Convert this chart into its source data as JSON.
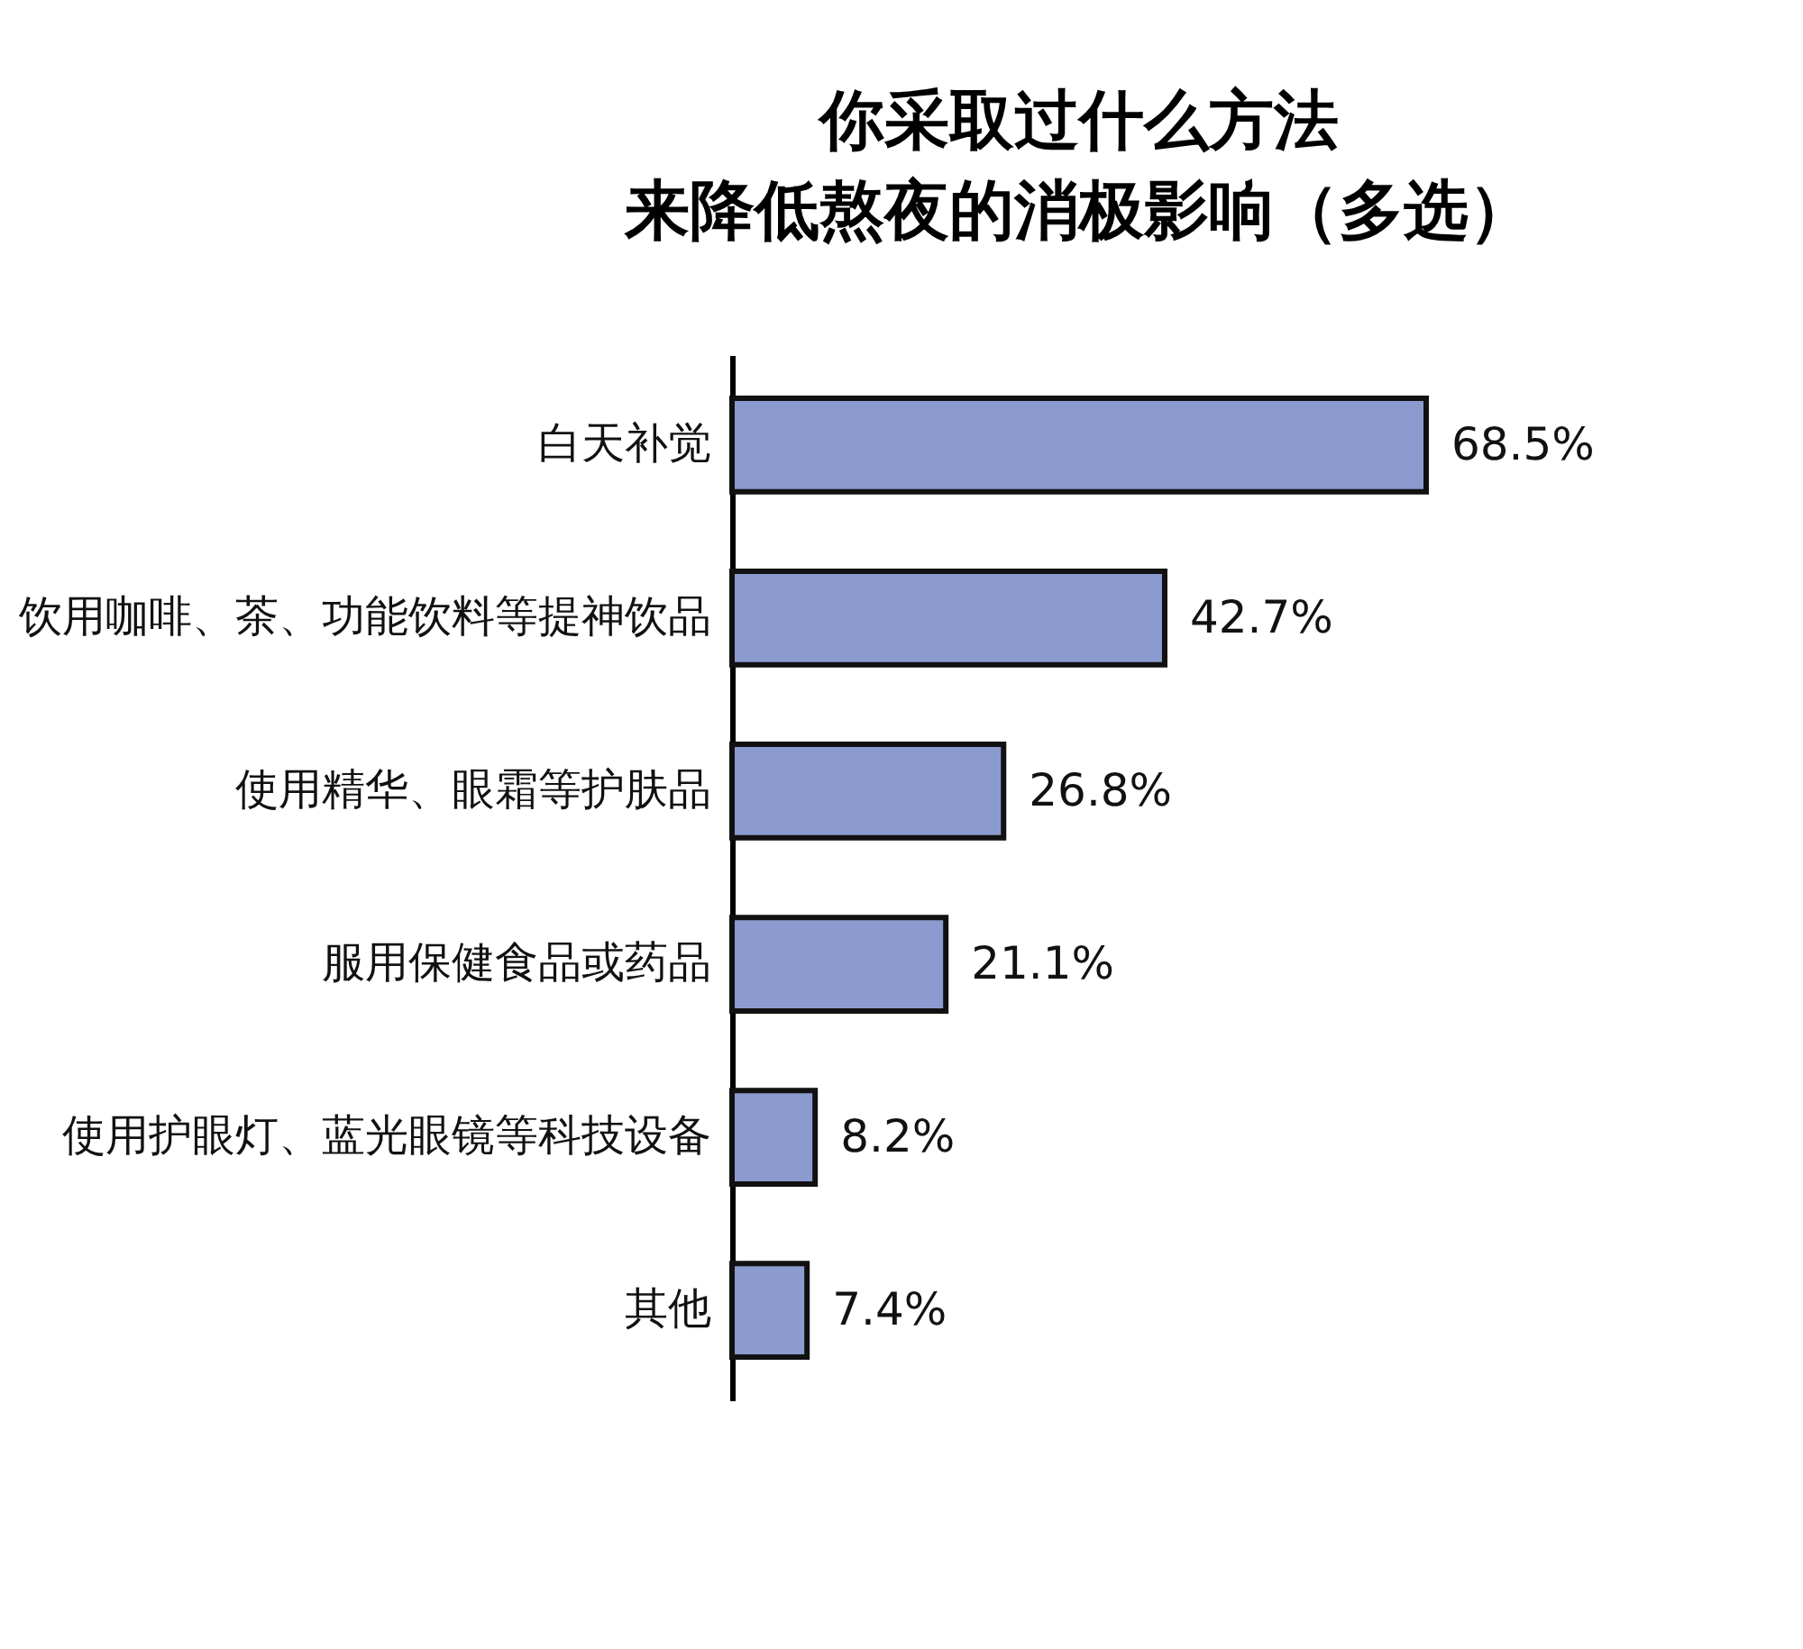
{
  "chart_data": {
    "type": "bar",
    "orientation": "horizontal",
    "title": "你采取过什么方法来降低熬夜的消极影响（多选）",
    "categories": [
      "白天补觉",
      "饮用咖啡、茶、功能饮料等提神饮品",
      "使用精华、眼霜等护肤品",
      "服用保健食品或药品",
      "使用护眼灯、蓝光眼镜等科技设备",
      "其他"
    ],
    "values": [
      68.5,
      42.7,
      26.8,
      21.1,
      8.2,
      7.4
    ],
    "value_labels": [
      "68.5%",
      "42.7%",
      "26.8%",
      "21.1%",
      "8.2%",
      "7.4%"
    ],
    "color": "#8b9bcf"
  }
}
